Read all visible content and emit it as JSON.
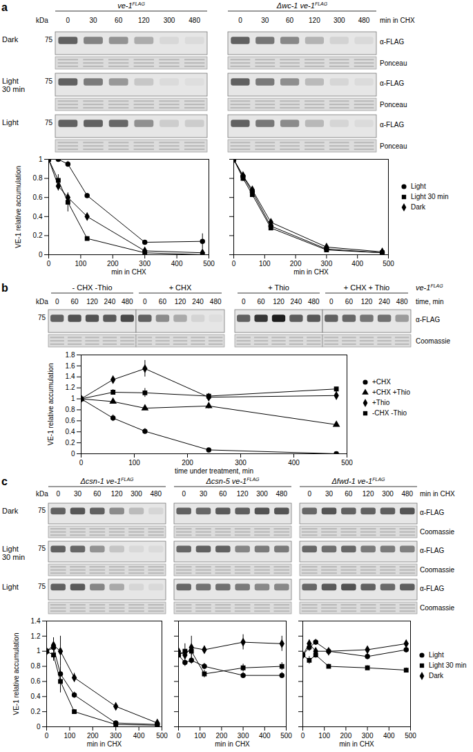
{
  "chart_data": [
    {
      "type": "line",
      "x": [
        0,
        30,
        60,
        120,
        300,
        480
      ],
      "xlim": [
        0,
        500
      ],
      "xticks": [
        0,
        100,
        200,
        300,
        400,
        500
      ],
      "ylim": [
        0,
        1
      ],
      "yticks": [
        0,
        0.2,
        0.4,
        0.6,
        0.8,
        1
      ],
      "xlabel": "min in CHX",
      "ylabel": "VE-1 relative accumulation",
      "series": [
        {
          "name": "Light",
          "color": "#000000",
          "marker": "circle",
          "values": [
            1,
            1,
            0.95,
            0.62,
            0.13,
            0.14
          ],
          "errors": [
            0,
            0,
            0.03,
            0.02,
            0.02,
            0.08
          ]
        },
        {
          "name": "Light 30 min",
          "color": "#000000",
          "marker": "square",
          "values": [
            1,
            0.78,
            0.55,
            0.17,
            0.02,
            0
          ],
          "errors": [
            0,
            0.06,
            0.1,
            0.02,
            0.01,
            0.01
          ]
        },
        {
          "name": "Dark",
          "color": "#000000",
          "marker": "diamond",
          "values": [
            1,
            0.72,
            0.6,
            0.4,
            0.04,
            0.02
          ],
          "errors": [
            0,
            0.05,
            0.04,
            0.02,
            0.01,
            0.01
          ]
        }
      ]
    },
    {
      "type": "line",
      "x": [
        0,
        30,
        60,
        120,
        300,
        480
      ],
      "xlim": [
        0,
        500
      ],
      "xticks": [
        0,
        100,
        200,
        300,
        400,
        500
      ],
      "ylim": [
        0,
        1
      ],
      "yticks": [
        0,
        0.2,
        0.4,
        0.6,
        0.8,
        1
      ],
      "xlabel": "min in CHX",
      "tick_labels": "x",
      "legend": "right",
      "series": [
        {
          "name": "Light",
          "color": "#000000",
          "marker": "circle",
          "values": [
            1,
            0.82,
            0.66,
            0.3,
            0.06,
            0.02
          ],
          "errors": [
            0,
            0.03,
            0.03,
            0.02,
            0.01,
            0.01
          ]
        },
        {
          "name": "Light 30 min",
          "color": "#000000",
          "marker": "square",
          "values": [
            1,
            0.8,
            0.63,
            0.28,
            0.05,
            0.02
          ],
          "errors": [
            0,
            0.03,
            0.03,
            0.02,
            0.01,
            0.01
          ]
        },
        {
          "name": "Dark",
          "color": "#000000",
          "marker": "diamond",
          "values": [
            1,
            0.83,
            0.68,
            0.34,
            0.08,
            0.03
          ],
          "errors": [
            0,
            0.03,
            0.03,
            0.02,
            0.01,
            0.01
          ]
        }
      ]
    },
    {
      "type": "line",
      "x": [
        0,
        60,
        120,
        240,
        480
      ],
      "xlim": [
        0,
        500
      ],
      "xticks": [
        0,
        100,
        200,
        300,
        400,
        500
      ],
      "ylim": [
        0,
        1.8
      ],
      "yticks": [
        0,
        0.2,
        0.4,
        0.6,
        0.8,
        1,
        1.2,
        1.4,
        1.6,
        1.8
      ],
      "xlabel": "time under treatment, min",
      "ylabel": "VE-1 relative accumulation",
      "legend": "right",
      "series": [
        {
          "name": "+CHX",
          "color": "#000000",
          "marker": "circle",
          "values": [
            1,
            0.65,
            0.41,
            0.07,
            0
          ],
          "errors": [
            0,
            0.06,
            0.05,
            0.01,
            0.01
          ]
        },
        {
          "name": "+CHX +Thio",
          "color": "#000000",
          "marker": "triangle",
          "values": [
            1,
            0.95,
            0.83,
            0.87,
            0.53
          ],
          "errors": [
            0,
            0.03,
            0.03,
            0.05,
            0.02
          ]
        },
        {
          "name": "+Thio",
          "color": "#000000",
          "marker": "diamond",
          "values": [
            1,
            1.35,
            1.55,
            1.03,
            1.06
          ],
          "errors": [
            0,
            0.04,
            0.15,
            0.05,
            0.08
          ]
        },
        {
          "name": "-CHX -Thio",
          "color": "#000000",
          "marker": "square",
          "values": [
            1,
            1.12,
            1.11,
            1.05,
            1.18
          ],
          "errors": [
            0,
            0.05,
            0.08,
            0.04,
            0.03
          ]
        }
      ]
    },
    {
      "type": "line",
      "x": [
        0,
        30,
        60,
        120,
        300,
        480
      ],
      "xlim": [
        0,
        500
      ],
      "xticks": [
        0,
        100,
        200,
        300,
        400,
        500
      ],
      "ylim": [
        0,
        1.4
      ],
      "yticks": [
        0,
        0.2,
        0.4,
        0.6,
        0.8,
        1,
        1.2,
        1.4
      ],
      "xlabel": "min in CHX",
      "ylabel": "VE-1 relative accumulation",
      "series": [
        {
          "name": "Light",
          "color": "#000000",
          "marker": "circle",
          "values": [
            1,
            1.05,
            0.7,
            0.42,
            0.05,
            0.03
          ],
          "errors": [
            0,
            0.05,
            0.1,
            0.04,
            0.01,
            0.01
          ]
        },
        {
          "name": "Light 30 min",
          "color": "#000000",
          "marker": "square",
          "values": [
            1,
            0.95,
            0.6,
            0.2,
            0.03,
            0.02
          ],
          "errors": [
            0,
            0.08,
            0.15,
            0.03,
            0.01,
            0.01
          ]
        },
        {
          "name": "Dark",
          "color": "#000000",
          "marker": "diamond",
          "values": [
            1,
            1.08,
            1,
            0.65,
            0.27,
            0.05
          ],
          "errors": [
            0,
            0.1,
            0.2,
            0.06,
            0.03,
            0.02
          ]
        }
      ]
    },
    {
      "type": "line",
      "x": [
        0,
        30,
        60,
        120,
        300,
        480
      ],
      "xlim": [
        0,
        500
      ],
      "xticks": [
        0,
        100,
        200,
        300,
        400,
        500
      ],
      "ylim": [
        0,
        1.4
      ],
      "yticks": [
        0,
        0.2,
        0.4,
        0.6,
        0.8,
        1,
        1.2,
        1.4
      ],
      "xlabel": "min in CHX",
      "tick_labels": "x",
      "series": [
        {
          "name": "Light",
          "color": "#000000",
          "marker": "circle",
          "values": [
            0.95,
            0.85,
            0.88,
            0.8,
            0.68,
            0.68
          ],
          "errors": [
            0,
            0.05,
            0.05,
            0.04,
            0.04,
            0.04
          ]
        },
        {
          "name": "Light 30 min",
          "color": "#000000",
          "marker": "square",
          "values": [
            0.95,
            1,
            1,
            0.7,
            0.78,
            0.8
          ],
          "errors": [
            0,
            0.1,
            0.06,
            0.05,
            0.05,
            0.05
          ]
        },
        {
          "name": "Dark",
          "color": "#000000",
          "marker": "diamond",
          "values": [
            1,
            0.95,
            1.05,
            1.02,
            1.12,
            1.1
          ],
          "errors": [
            0,
            0.05,
            0.15,
            0.05,
            0.1,
            0.1
          ]
        }
      ]
    },
    {
      "type": "line",
      "x": [
        0,
        30,
        60,
        120,
        300,
        480
      ],
      "xlim": [
        0,
        500
      ],
      "xticks": [
        0,
        100,
        200,
        300,
        400,
        500
      ],
      "ylim": [
        0,
        1.4
      ],
      "yticks": [
        0,
        0.2,
        0.4,
        0.6,
        0.8,
        1,
        1.2,
        1.4
      ],
      "xlabel": "min in CHX",
      "tick_labels": "x",
      "legend": "right",
      "series": [
        {
          "name": "Light",
          "color": "#000000",
          "marker": "circle",
          "values": [
            0.95,
            1.05,
            1.12,
            1,
            0.93,
            1.02
          ],
          "errors": [
            0,
            0.05,
            0.04,
            0.03,
            0.04,
            0.04
          ]
        },
        {
          "name": "Light 30 min",
          "color": "#000000",
          "marker": "square",
          "values": [
            0.95,
            0.88,
            0.95,
            0.8,
            0.78,
            0.75
          ],
          "errors": [
            0,
            0.05,
            0.04,
            0.03,
            0.03,
            0.03
          ]
        },
        {
          "name": "Dark",
          "color": "#000000",
          "marker": "diamond",
          "values": [
            0.95,
            1.1,
            1,
            1,
            1.02,
            1.1
          ],
          "errors": [
            0,
            0.05,
            0.04,
            0.03,
            0.03,
            0.04
          ]
        }
      ]
    }
  ],
  "panels": [
    {
      "letter": "a",
      "kda": "kDa",
      "marker": 75,
      "time_label": "min in CHX",
      "blot_label": "α-FLAG",
      "loading_label": "Ponceau",
      "strains": [
        {
          "text": "ve-1",
          "sup": "FLAG"
        },
        {
          "text": "Δwc-1 ve-1",
          "sup": "FLAG"
        }
      ],
      "rows": [
        {
          "label": [
            "Dark"
          ]
        },
        {
          "label": [
            "Light",
            "30 min"
          ]
        },
        {
          "label": [
            "Light"
          ]
        }
      ]
    },
    {
      "letter": "b",
      "kda": "kDa",
      "marker": 75,
      "time_label": "time, min",
      "blot_label": "α-FLAG",
      "loading_label": "Coomassie",
      "strains": [
        {
          "text": "ve-1",
          "sup": "FLAG"
        }
      ],
      "groups": [
        "- CHX -Thio",
        "+ CHX",
        "+ Thio",
        "+ CHX + Thio"
      ]
    },
    {
      "letter": "c",
      "kda": "kDa",
      "marker": 75,
      "time_label": "min in CHX",
      "blot_label": "α-FLAG",
      "loading_label": "Coomassie",
      "strains": [
        {
          "text": "Δcsn-1 ve-1",
          "sup": "FLAG"
        },
        {
          "text": "Δcsn-5 ve-1",
          "sup": "FLAG"
        },
        {
          "text": "Δfwd-1 ve-1",
          "sup": "FLAG"
        }
      ],
      "rows": [
        {
          "label": [
            "Dark"
          ]
        },
        {
          "label": [
            "Light",
            "30 min"
          ]
        },
        {
          "label": [
            "Light"
          ]
        }
      ]
    }
  ]
}
